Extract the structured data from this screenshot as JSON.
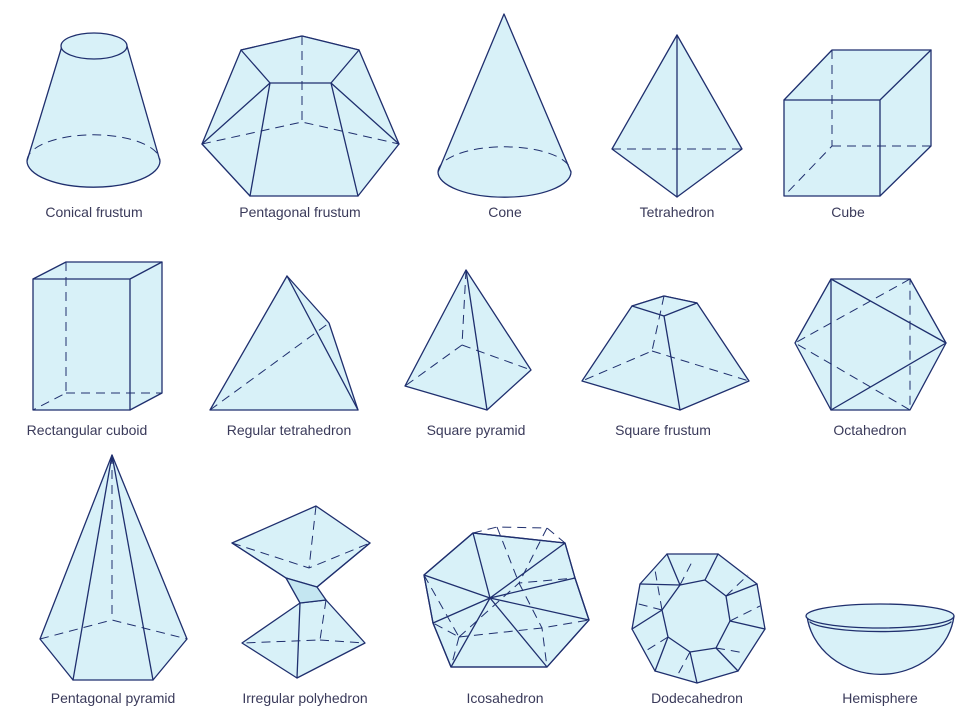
{
  "shapes": [
    {
      "id": "conical-frustum",
      "label": "Conical frustum"
    },
    {
      "id": "pentagonal-frustum",
      "label": "Pentagonal frustum"
    },
    {
      "id": "cone",
      "label": "Cone"
    },
    {
      "id": "tetrahedron",
      "label": "Tetrahedron"
    },
    {
      "id": "cube",
      "label": "Cube"
    },
    {
      "id": "rectangular-cuboid",
      "label": "Rectangular cuboid"
    },
    {
      "id": "regular-tetrahedron",
      "label": "Regular tetrahedron"
    },
    {
      "id": "square-pyramid",
      "label": "Square pyramid"
    },
    {
      "id": "square-frustum",
      "label": "Square frustum"
    },
    {
      "id": "octahedron",
      "label": "Octahedron"
    },
    {
      "id": "pentagonal-pyramid",
      "label": "Pentagonal pyramid"
    },
    {
      "id": "irregular-polyhedron",
      "label": "Irregular polyhedron"
    },
    {
      "id": "icosahedron",
      "label": "Icosahedron"
    },
    {
      "id": "dodecahedron",
      "label": "Dodecahedron"
    },
    {
      "id": "hemisphere",
      "label": "Hemisphere"
    }
  ],
  "colors": {
    "fill": "#d8f1f8",
    "stroke": "#1f2f6e",
    "label": "#3a3a5a"
  }
}
